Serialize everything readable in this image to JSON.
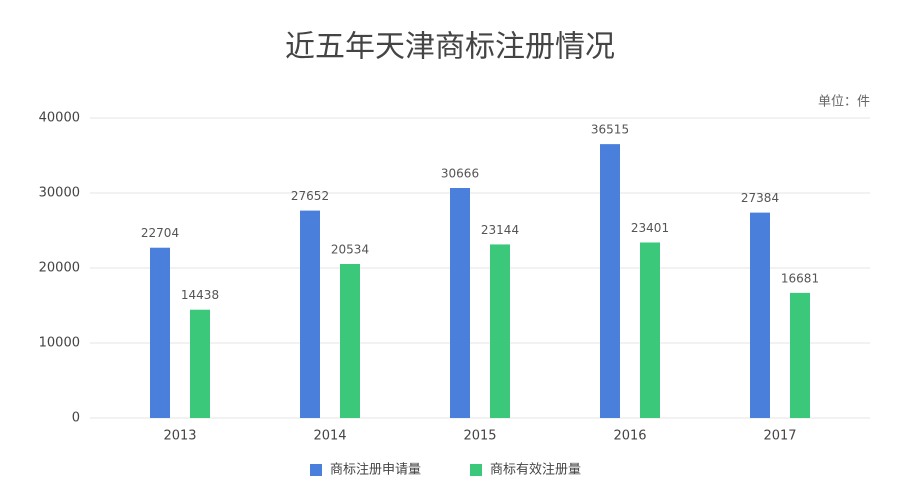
{
  "chart_data": {
    "type": "bar",
    "title": "近五年天津商标注册情况",
    "unit": "单位：件",
    "categories": [
      "2013",
      "2014",
      "2015",
      "2016",
      "2017"
    ],
    "series": [
      {
        "name": "商标注册申请量",
        "color": "#4a7fdb",
        "values": [
          22704,
          27652,
          30666,
          36515,
          27384
        ]
      },
      {
        "name": "商标有效注册量",
        "color": "#3cc87a",
        "values": [
          14438,
          20534,
          23144,
          23401,
          16681
        ]
      }
    ],
    "ylim": [
      0,
      40000
    ],
    "yticks": [
      0,
      10000,
      20000,
      30000,
      40000
    ],
    "grid": true,
    "legend": "bottom"
  }
}
